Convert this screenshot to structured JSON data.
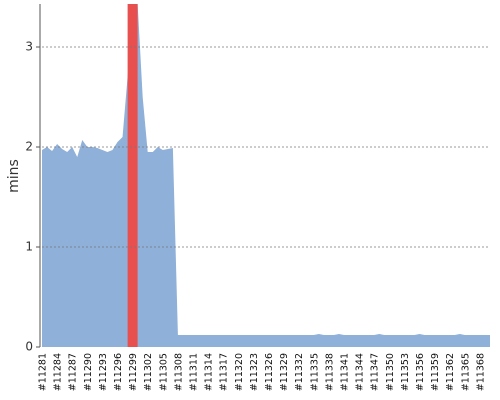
{
  "chart_data": {
    "type": "area",
    "y_label": "mins",
    "categories": [
      "#11281",
      null,
      null,
      "#11284",
      null,
      null,
      "#11287",
      null,
      null,
      "#11290",
      null,
      null,
      "#11293",
      null,
      null,
      "#11296",
      null,
      null,
      "#11299",
      null,
      null,
      "#11302",
      null,
      null,
      "#11305",
      null,
      null,
      "#11308",
      null,
      null,
      "#11311",
      null,
      null,
      "#11314",
      null,
      null,
      "#11317",
      null,
      null,
      "#11320",
      null,
      null,
      "#11323",
      null,
      null,
      "#11326",
      null,
      null,
      "#11329",
      null,
      null,
      "#11332",
      null,
      null,
      "#11335",
      null,
      null,
      "#11338",
      null,
      null,
      "#11341",
      null,
      null,
      "#11344",
      null,
      null,
      "#11347",
      null,
      null,
      "#11350",
      null,
      null,
      "#11353",
      null,
      null,
      "#11356",
      null,
      null,
      "#11359",
      null,
      null,
      "#11362",
      null,
      null,
      "#11365",
      null,
      null,
      "#11368",
      null,
      null
    ],
    "series": [
      {
        "color": "#8fb0d9",
        "values": [
          1.97,
          2.0,
          1.96,
          2.03,
          1.98,
          1.95,
          2.0,
          1.9,
          2.07,
          2.0,
          2.0,
          1.99,
          1.97,
          1.95,
          1.97,
          2.05,
          2.1,
          2.7,
          3.43,
          3.43,
          2.5,
          1.95,
          1.95,
          2.0,
          1.97,
          1.98,
          1.99,
          0.12,
          0.12,
          0.12,
          0.12,
          0.12,
          0.12,
          0.12,
          0.12,
          0.12,
          0.12,
          0.12,
          0.12,
          0.12,
          0.12,
          0.12,
          0.12,
          0.12,
          0.12,
          0.12,
          0.12,
          0.12,
          0.12,
          0.12,
          0.12,
          0.12,
          0.12,
          0.12,
          0.12,
          0.13,
          0.12,
          0.12,
          0.12,
          0.13,
          0.12,
          0.12,
          0.12,
          0.12,
          0.12,
          0.12,
          0.12,
          0.13,
          0.12,
          0.12,
          0.12,
          0.12,
          0.12,
          0.12,
          0.12,
          0.13,
          0.12,
          0.12,
          0.12,
          0.12,
          0.12,
          0.12,
          0.12,
          0.13,
          0.12,
          0.12,
          0.12,
          0.12,
          0.12,
          0.12
        ]
      },
      {
        "type": "bar",
        "color": "#e85050",
        "values": [
          null,
          null,
          null,
          null,
          null,
          null,
          null,
          null,
          null,
          null,
          null,
          null,
          null,
          null,
          null,
          null,
          null,
          null,
          3.43,
          null,
          null,
          null,
          null,
          null,
          null,
          null,
          null,
          null,
          null,
          null,
          null,
          null,
          null,
          null,
          null,
          null,
          null,
          null,
          null,
          null,
          null,
          null,
          null,
          null,
          null,
          null,
          null,
          null,
          null,
          null,
          null,
          null,
          null,
          null,
          null,
          null,
          null,
          null,
          null,
          null,
          null,
          null,
          null,
          null,
          null,
          null,
          null,
          null,
          null,
          null,
          null,
          null,
          null,
          null,
          null,
          null,
          null,
          null,
          null,
          null,
          null,
          null,
          null,
          null,
          null,
          null,
          null,
          null,
          null,
          null
        ]
      }
    ],
    "ylim": [
      0,
      3.43
    ],
    "yticks": [
      0,
      1,
      2,
      3
    ],
    "grid": true
  }
}
